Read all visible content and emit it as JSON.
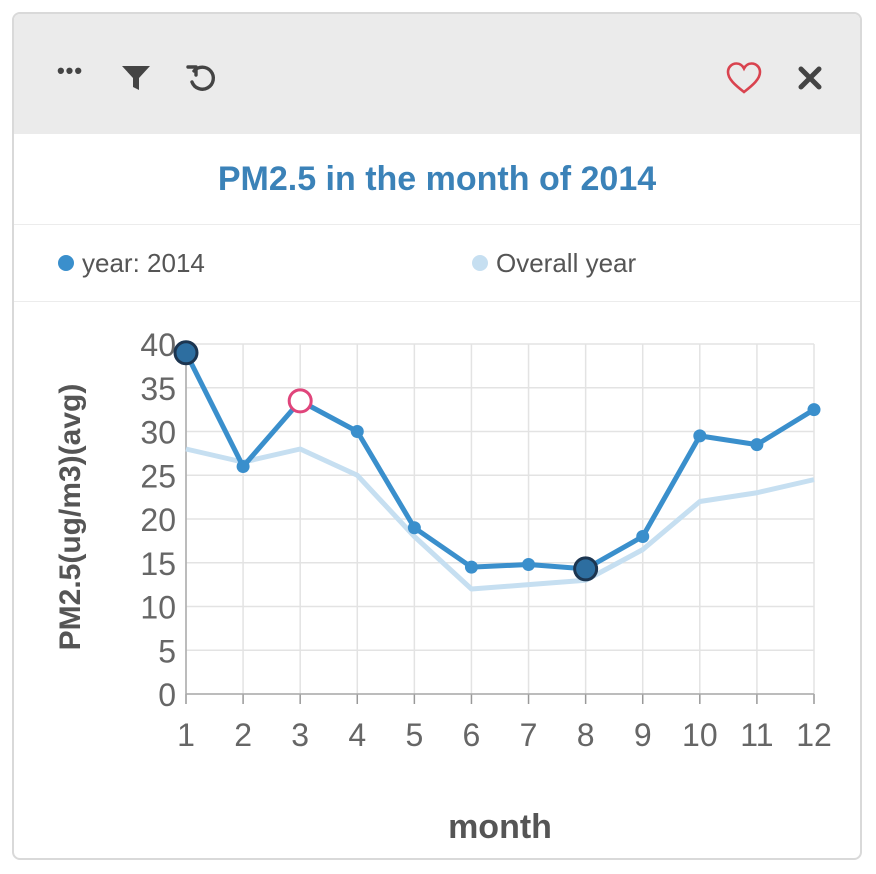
{
  "toolbar": {
    "icons": [
      "more-icon",
      "filter-icon",
      "reset-icon",
      "heart-icon",
      "close-icon"
    ],
    "more_label": "•••"
  },
  "colors": {
    "series_main": "#3a8fcc",
    "series_overall": "#c6dff1",
    "title": "#3b82b8",
    "highlight_ring": "#e0457b",
    "selected_fill": "#2d6ea0"
  },
  "chart_data": {
    "type": "line",
    "title": "PM2.5 in the month of 2014",
    "xlabel": "month",
    "ylabel": "PM2.5(ug/m3)(avg)",
    "x": [
      1,
      2,
      3,
      4,
      5,
      6,
      7,
      8,
      9,
      10,
      11,
      12
    ],
    "ylim": [
      0,
      40
    ],
    "yticks": [
      0,
      5,
      10,
      15,
      20,
      25,
      30,
      35,
      40
    ],
    "grid": true,
    "legend_position": "top",
    "series": [
      {
        "name": "year: 2014",
        "values": [
          39,
          26,
          33.5,
          30,
          19,
          14.5,
          14.8,
          14.3,
          18,
          29.5,
          28.5,
          32.5
        ]
      },
      {
        "name": "Overall year",
        "values": [
          28,
          26.5,
          28,
          25,
          18,
          12,
          12.5,
          13,
          16.5,
          22,
          23,
          24.5
        ]
      }
    ],
    "highlighted_points": [
      {
        "series": "year: 2014",
        "x": 1,
        "style": "selected"
      },
      {
        "series": "year: 2014",
        "x": 3,
        "style": "hover"
      },
      {
        "series": "year: 2014",
        "x": 8,
        "style": "selected"
      }
    ]
  }
}
